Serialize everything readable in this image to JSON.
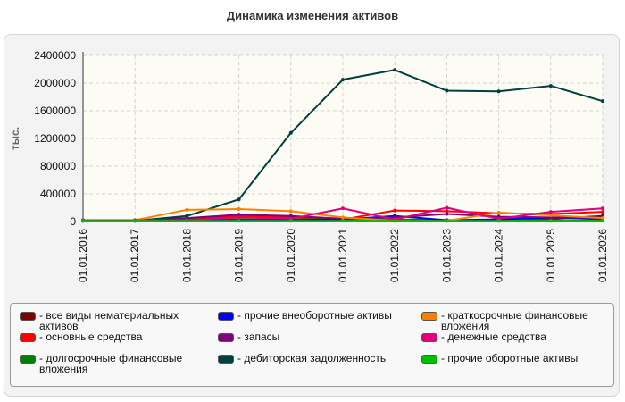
{
  "title": "Динамика изменения активов",
  "colors": {
    "plot_bg": "#fcfcf4",
    "grid": "#d2d2d2",
    "axis": "#333333"
  },
  "chart_data": {
    "type": "line",
    "title": "Динамика изменения активов",
    "xlabel": "",
    "ylabel": "тыс.",
    "ylim": [
      0,
      2400000
    ],
    "yticks": [
      "0",
      "400000",
      "800000",
      "1200000",
      "1600000",
      "2000000",
      "2400000"
    ],
    "grid": true,
    "legend_position": "bottom",
    "categories": [
      "01.01.2016",
      "01.01.2017",
      "01.01.2018",
      "01.01.2019",
      "01.01.2020",
      "01.01.2021",
      "01.01.2022",
      "01.01.2023",
      "01.01.2024",
      "01.01.2025",
      "01.01.2026"
    ],
    "series": [
      {
        "name": "- все виды нематериальных активов",
        "color": "#800000",
        "values": [
          15000,
          15000,
          15000,
          15000,
          15000,
          15000,
          15000,
          10000,
          10000,
          40000,
          80000
        ]
      },
      {
        "name": "- основные средства",
        "color": "#ff0000",
        "values": [
          20000,
          20000,
          40000,
          80000,
          60000,
          30000,
          160000,
          150000,
          120000,
          110000,
          140000
        ]
      },
      {
        "name": "- долгосрочные финансовые вложения",
        "color": "#008000",
        "values": [
          20000,
          20000,
          30000,
          30000,
          30000,
          30000,
          30000,
          20000,
          20000,
          20000,
          20000
        ]
      },
      {
        "name": "- прочие внеоборотные активы",
        "color": "#0000ff",
        "values": [
          10000,
          10000,
          10000,
          20000,
          20000,
          30000,
          80000,
          20000,
          30000,
          60000,
          40000
        ]
      },
      {
        "name": "- запасы",
        "color": "#800080",
        "values": [
          20000,
          20000,
          50000,
          100000,
          80000,
          40000,
          60000,
          110000,
          70000,
          60000,
          60000
        ]
      },
      {
        "name": "- дебиторская задолженность",
        "color": "#004040",
        "values": [
          10000,
          10000,
          80000,
          320000,
          1280000,
          2050000,
          2190000,
          1890000,
          1880000,
          1960000,
          1740000
        ]
      },
      {
        "name": "- краткосрочные финансовые вложения",
        "color": "#ff8000",
        "values": [
          20000,
          20000,
          170000,
          180000,
          150000,
          60000,
          10000,
          10000,
          130000,
          90000,
          50000
        ]
      },
      {
        "name": "- денежные средства",
        "color": "#e0007f",
        "values": [
          20000,
          20000,
          20000,
          60000,
          40000,
          190000,
          30000,
          200000,
          40000,
          140000,
          190000
        ]
      },
      {
        "name": "- прочие оборотные активы",
        "color": "#00c000",
        "values": [
          10000,
          10000,
          10000,
          10000,
          10000,
          10000,
          10000,
          10000,
          10000,
          10000,
          10000
        ]
      }
    ]
  }
}
